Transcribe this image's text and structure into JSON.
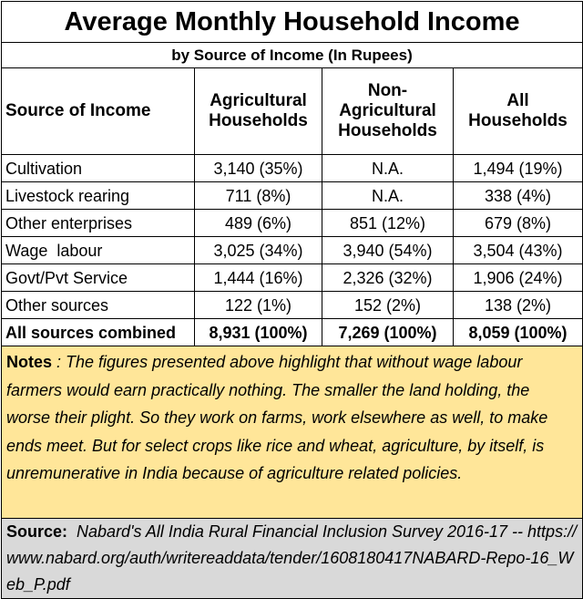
{
  "title": "Average Monthly Household Income",
  "subtitle": "by Source of Income (In Rupees)",
  "headers": {
    "source": "Source of Income",
    "agri": "Agricultural Households",
    "nonagri": "Non-Agricultural Households",
    "all": "All Households"
  },
  "rows": [
    {
      "source": "Cultivation",
      "agri": "3,140 (35%)",
      "nonagri": "N.A.",
      "all": "1,494 (19%)"
    },
    {
      "source": "Livestock rearing",
      "agri": "711 (8%)",
      "nonagri": "N.A.",
      "all": "338 (4%)"
    },
    {
      "source": "Other enterprises",
      "agri": "489 (6%)",
      "nonagri": "851 (12%)",
      "all": "679 (8%)"
    },
    {
      "source": "Wage  labour",
      "agri": "3,025 (34%)",
      "nonagri": "3,940 (54%)",
      "all": "3,504 (43%)"
    },
    {
      "source": "Govt/Pvt Service",
      "agri": "1,444 (16%)",
      "nonagri": "2,326 (32%)",
      "all": "1,906 (24%)"
    },
    {
      "source": "Other sources",
      "agri": "122 (1%)",
      "nonagri": "152 (2%)",
      "all": "138 (2%)"
    }
  ],
  "total": {
    "source": "All sources combined",
    "agri": "8,931 (100%)",
    "nonagri": "7,269 (100%)",
    "all": "8,059 (100%)"
  },
  "notes": {
    "label": "Notes",
    "text": " : The figures presented above highlight that without wage labour farmers would earn practically nothing. The smaller the land holding, the worse their plight. So they work on farms, work elsewhere as well, to make ends meet. But for select crops like rice and wheat, agriculture, by itself, is unremunerative in India because of agriculture related policies."
  },
  "source": {
    "label": "Source:",
    "text": "  Nabard's All India Rural Financial Inclusion Survey 2016-17 -- https://www.nabard.org/auth/writereaddata/tender/1608180417NABARD-Repo-16_Web_P.pdf"
  }
}
